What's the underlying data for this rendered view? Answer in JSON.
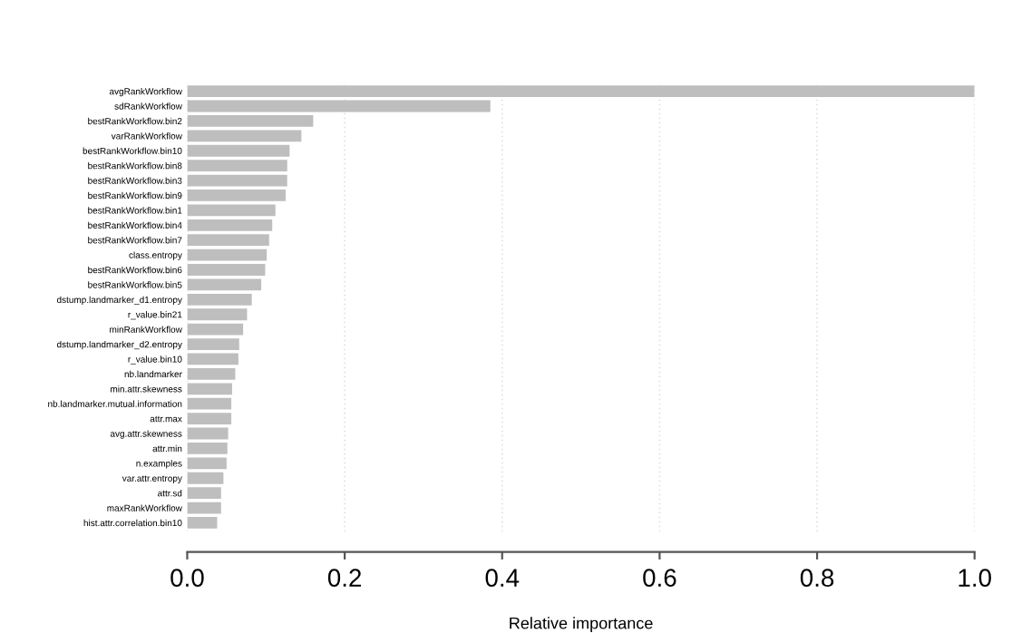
{
  "chart_data": {
    "type": "bar",
    "orientation": "horizontal",
    "xlabel": "Relative importance",
    "categories": [
      "avgRankWorkflow",
      "sdRankWorkflow",
      "bestRankWorkflow.bin2",
      "varRankWorkflow",
      "bestRankWorkflow.bin10",
      "bestRankWorkflow.bin8",
      "bestRankWorkflow.bin3",
      "bestRankWorkflow.bin9",
      "bestRankWorkflow.bin1",
      "bestRankWorkflow.bin4",
      "bestRankWorkflow.bin7",
      "class.entropy",
      "bestRankWorkflow.bin6",
      "bestRankWorkflow.bin5",
      "dstump.landmarker_d1.entropy",
      "r_value.bin21",
      "minRankWorkflow",
      "dstump.landmarker_d2.entropy",
      "r_value.bin10",
      "nb.landmarker",
      "min.attr.skewness",
      "nb.landmarker.mutual.information",
      "attr.max",
      "avg.attr.skewness",
      "attr.min",
      "n.examples",
      "var.attr.entropy",
      "attr.sd",
      "maxRankWorkflow",
      "hist.attr.correlation.bin10"
    ],
    "values": [
      1.0,
      0.385,
      0.16,
      0.145,
      0.13,
      0.127,
      0.127,
      0.125,
      0.112,
      0.108,
      0.104,
      0.101,
      0.099,
      0.094,
      0.082,
      0.076,
      0.071,
      0.066,
      0.065,
      0.061,
      0.057,
      0.056,
      0.056,
      0.052,
      0.051,
      0.05,
      0.046,
      0.043,
      0.043,
      0.038
    ],
    "color": "#bebebe",
    "xlim": [
      0,
      1
    ],
    "xticks": [
      {
        "value": 0,
        "label": "0.0"
      },
      0.2,
      0.4,
      0.6,
      0.8,
      {
        "value": 1,
        "label": "1.0"
      }
    ],
    "grid": "x"
  }
}
